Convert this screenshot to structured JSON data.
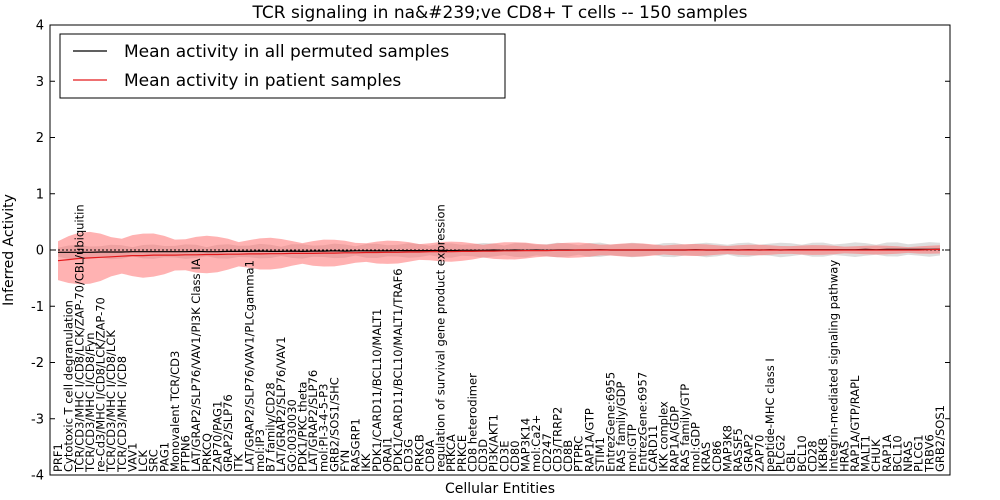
{
  "chart_data": {
    "type": "line",
    "title": "TCR signaling in na&#239;ve CD8+ T cells -- 150 samples",
    "xlabel": "Cellular Entities",
    "ylabel": "Inferred Activity",
    "ylim": [
      -4,
      4
    ],
    "yticks": [
      -4,
      -3,
      -2,
      -1,
      0,
      1,
      2,
      3,
      4
    ],
    "legend": {
      "position": "top-left",
      "entries": [
        {
          "label": "Mean activity in all permuted samples",
          "color": "#000000"
        },
        {
          "label": "Mean activity in patient samples",
          "color": "#e41a1c"
        }
      ]
    },
    "categories": [
      "PRF1",
      "Cytotoxic T cell degranulation",
      "TCR/CD3/MHC I/CD8/LCK/ZAP-70/CBL/ubiquitin",
      "TCR/CD3/MHC I/CD8/Fyn",
      "re-Cd3/MHC I/CD8/LCK/ZAP-70",
      "TCR/CD3/MHC I/CD8/LCK",
      "TCR/CD3/MHC I/CD8",
      "VAV1",
      "LCK",
      "SRC",
      "PAG1",
      "Monovalent TCR/CD3",
      "PTPN6",
      "LAT/GRAP2/SLP76/VAV1/PI3K Class IA",
      "PRKCQ",
      "ZAP70/PAG1",
      "GRAP2/SLP76",
      "ITK",
      "LAT/GRAP2/SLP76/VAV1/PLCgamma1",
      "mol:IP3",
      "B7 family/CD28",
      "LAT/GRAP2/SLP76/VAV1",
      "GO:0030030",
      "PDK1/PKC theta",
      "LAT/GRAP2/SLP76",
      "mol:PI-3-4-5-P3",
      "GRB2/SOS1/SHC",
      "FYN",
      "RASGRP1",
      "IKK",
      "PDK1/CARD11/BCL10/MALT1",
      "ORAI1",
      "PDK1/CARD11/BCL10/MALT1/TRAF6",
      "CD3G",
      "PRKCB",
      "CD8A",
      "regulation of survival gene product expression",
      "PRKCA",
      "PRKCE",
      "CD8 heterodimer",
      "CD3D",
      "PI3K/AKT1",
      "CD3E",
      "CD80",
      "MAP3K14",
      "mol:Ca2+",
      "CD247",
      "CD3/TRRP2",
      "CD8B",
      "PTPRC",
      "RAP1A/GTP",
      "STIM1",
      "EntrezGene:6955",
      "RAS family/GDP",
      "mol:GTP",
      "EntrezGene:6957",
      "CARD11",
      "IKK complex",
      "RAP1A/GDP",
      "RAS family/GTP",
      "mol:GDP",
      "KRAS",
      "CD86",
      "MAP3K8",
      "RASSF5",
      "GRAP2",
      "ZAP70",
      "peptide-MHC class I",
      "PLCG2",
      "CBL",
      "BCL10",
      "CD28",
      "IKBKB",
      "Integrin-mediated signaling pathway",
      "HRAS",
      "RAP1A/GTP/RAPL",
      "MALT1",
      "CHUK",
      "RAP1A",
      "BCL10",
      "NRAS",
      "PLCG1",
      "TRBV6",
      "GRB2/SOS1"
    ],
    "series": [
      {
        "name": "Mean activity in all permuted samples",
        "color": "#000000",
        "values": [
          -0.04,
          -0.04,
          -0.04,
          -0.04,
          -0.035,
          -0.035,
          -0.035,
          -0.03,
          -0.03,
          -0.03,
          -0.03,
          -0.03,
          -0.03,
          -0.025,
          -0.03,
          -0.03,
          -0.025,
          -0.025,
          -0.025,
          -0.02,
          -0.025,
          -0.025,
          -0.02,
          -0.025,
          -0.02,
          -0.02,
          -0.015,
          -0.02,
          -0.015,
          -0.015,
          -0.015,
          -0.015,
          -0.01,
          -0.01,
          -0.01,
          -0.01,
          -0.005,
          -0.01,
          -0.005,
          -0.005,
          -0.005,
          0.0,
          -0.005,
          0.0,
          -0.005,
          0.0,
          -0.005,
          0.0,
          0.0,
          0.0,
          0.0,
          0.005,
          0.0,
          0.0,
          0.0,
          0.0,
          0.0,
          0.0,
          0.0,
          0.0,
          0.005,
          0.0,
          0.0,
          0.005,
          0.0,
          0.005,
          0.0,
          0.005,
          0.0,
          0.005,
          0.005,
          0.005,
          0.005,
          0.005,
          0.005,
          0.005,
          0.01,
          0.005,
          0.01,
          0.01,
          0.01,
          0.01,
          0.01,
          0.015
        ]
      },
      {
        "name": "Mean activity in patient samples",
        "color": "#e41a1c",
        "values": [
          -0.19,
          -0.17,
          -0.15,
          -0.14,
          -0.13,
          -0.12,
          -0.11,
          -0.1,
          -0.1,
          -0.09,
          -0.09,
          -0.09,
          -0.085,
          -0.085,
          -0.08,
          -0.08,
          -0.075,
          -0.075,
          -0.07,
          -0.07,
          -0.065,
          -0.065,
          -0.06,
          -0.06,
          -0.06,
          -0.055,
          -0.055,
          -0.05,
          -0.05,
          -0.045,
          -0.045,
          -0.04,
          -0.04,
          -0.035,
          -0.035,
          -0.03,
          -0.03,
          -0.03,
          -0.025,
          -0.025,
          -0.02,
          -0.02,
          -0.015,
          -0.015,
          -0.01,
          -0.01,
          -0.01,
          -0.005,
          -0.005,
          0.0,
          0.0,
          0.0,
          0.0,
          0.0,
          0.0,
          0.0,
          0.0,
          0.0,
          0.0,
          0.0,
          0.0,
          0.0,
          0.0,
          0.0,
          0.0,
          0.0,
          0.0,
          0.0,
          0.0,
          0.0,
          0.0,
          0.0,
          0.0,
          0.0,
          0.0,
          0.0,
          0.0,
          0.0,
          0.0,
          0.0,
          0.0,
          0.0,
          0.005,
          0.01
        ]
      }
    ]
  }
}
